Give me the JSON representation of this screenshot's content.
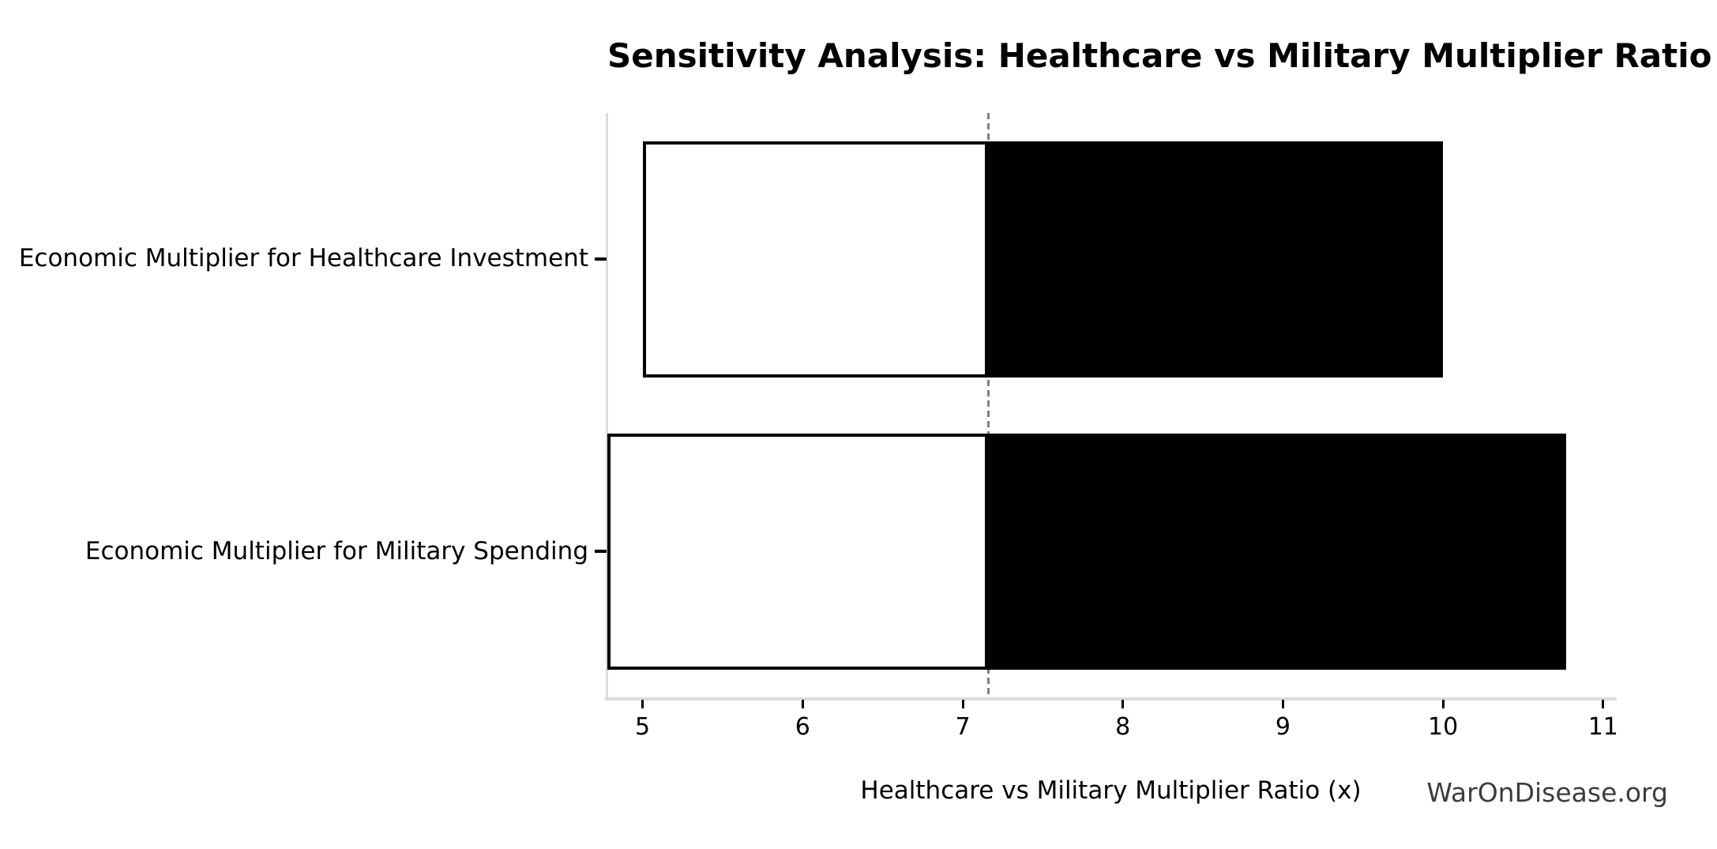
{
  "title": "Sensitivity Analysis: Healthcare vs Military Multiplier Ratio",
  "watermark": "WarOnDisease.org",
  "chart_data": {
    "type": "bar",
    "subtype": "tornado-sensitivity",
    "orientation": "horizontal",
    "title": "Sensitivity Analysis: Healthcare vs Military Multiplier Ratio",
    "xlabel": "Healthcare vs Military Multiplier Ratio (x)",
    "ylabel": "",
    "categories": [
      "Economic Multiplier for Healthcare Investment",
      "Economic Multiplier for Military Spending"
    ],
    "baseline": 7.16,
    "series": [
      {
        "name": "Economic Multiplier for Healthcare Investment",
        "low": 5.0,
        "high": 10.0
      },
      {
        "name": "Economic Multiplier for Military Spending",
        "low": 4.78,
        "high": 10.77
      }
    ],
    "xlim": [
      4.78,
      11.07
    ],
    "xticks": [
      5,
      6,
      7,
      8,
      9,
      10,
      11
    ],
    "grid": false,
    "legend": "none",
    "colors": {
      "low_segment_fill": "#ffffff",
      "high_segment_fill": "#000000",
      "bar_border": "#000000",
      "baseline_line": "#7f7f7f",
      "spine": "#dcdcdc",
      "text": "#000000",
      "watermark": "#3d3d3d"
    }
  }
}
